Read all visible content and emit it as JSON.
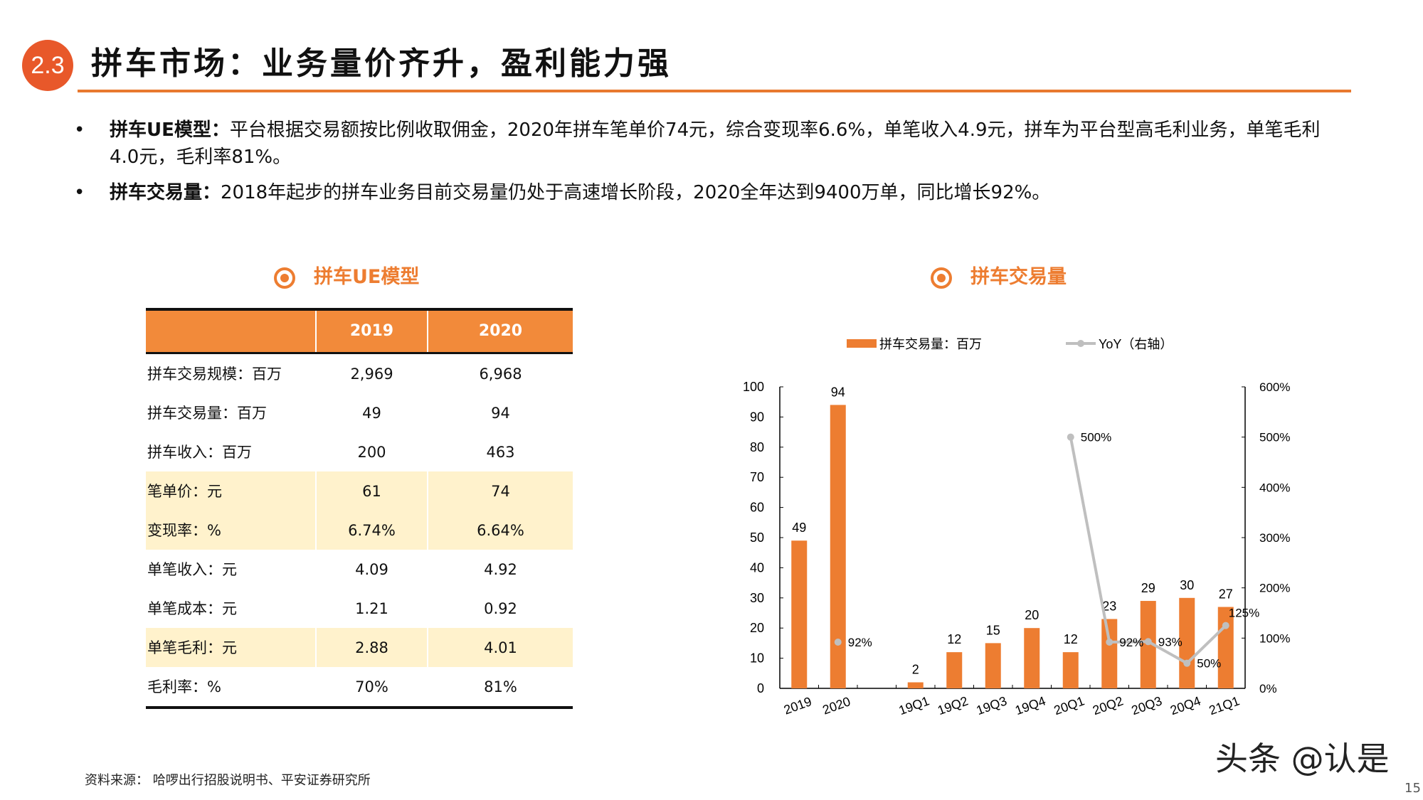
{
  "header": {
    "badge": "2.3",
    "title": "拼车市场：业务量价齐升，盈利能力强"
  },
  "bullets": [
    {
      "label": "拼车UE模型：",
      "text": "平台根据交易额按比例收取佣金，2020年拼车笔单价74元，综合变现率6.6%，单笔收入4.9元，拼车为平台型高毛利业务，单笔毛利4.0元，毛利率81%。"
    },
    {
      "label": "拼车交易量：",
      "text": "2018年起步的拼车业务目前交易量仍处于高速增长阶段，2020全年达到9400万单，同比增长92%。"
    }
  ],
  "table_section": {
    "title": "拼车UE模型",
    "columns": [
      "",
      "2019",
      "2020"
    ],
    "rows": [
      {
        "label": "拼车交易规模：百万",
        "v2019": "2,969",
        "v2020": "6,968",
        "highlight": false
      },
      {
        "label": "拼车交易量：百万",
        "v2019": "49",
        "v2020": "94",
        "highlight": false
      },
      {
        "label": "拼车收入：百万",
        "v2019": "200",
        "v2020": "463",
        "highlight": false
      },
      {
        "label": "笔单价：元",
        "v2019": "61",
        "v2020": "74",
        "highlight": true
      },
      {
        "label": "变现率：%",
        "v2019": "6.74%",
        "v2020": "6.64%",
        "highlight": true
      },
      {
        "label": "单笔收入：元",
        "v2019": "4.09",
        "v2020": "4.92",
        "highlight": false
      },
      {
        "label": "单笔成本：元",
        "v2019": "1.21",
        "v2020": "0.92",
        "highlight": false
      },
      {
        "label": "单笔毛利：元",
        "v2019": "2.88",
        "v2020": "4.01",
        "highlight": true
      },
      {
        "label": "毛利率：%",
        "v2019": "70%",
        "v2020": "81%",
        "highlight": false
      }
    ]
  },
  "chart_section": {
    "title": "拼车交易量"
  },
  "chart_data": {
    "type": "bar+line",
    "categories": [
      "2019",
      "2020",
      "",
      "19Q1",
      "19Q2",
      "19Q3",
      "19Q4",
      "20Q1",
      "20Q2",
      "20Q3",
      "20Q4",
      "21Q1"
    ],
    "series": [
      {
        "name": "拼车交易量：百万",
        "type": "bar",
        "axis": "left",
        "color": "#ED7D31",
        "values": [
          49,
          94,
          null,
          2,
          12,
          15,
          20,
          12,
          23,
          29,
          30,
          27
        ],
        "labels": [
          "49",
          "94",
          "",
          "2",
          "12",
          "15",
          "20",
          "12",
          "23",
          "29",
          "30",
          "27"
        ]
      },
      {
        "name": "YoY（右轴）",
        "type": "line",
        "axis": "right",
        "color": "#BFBFBF",
        "values": [
          null,
          92,
          null,
          null,
          null,
          null,
          null,
          500,
          92,
          93,
          50,
          125
        ],
        "labels": [
          "",
          "92%",
          "",
          "",
          "",
          "",
          "",
          "500%",
          "92%",
          "93%",
          "50%",
          "125%"
        ]
      }
    ],
    "y_left": {
      "range": [
        0,
        100
      ],
      "ticks": [
        "0",
        "10",
        "20",
        "30",
        "40",
        "50",
        "60",
        "70",
        "80",
        "90",
        "100"
      ]
    },
    "y_right": {
      "range": [
        0,
        600
      ],
      "ticks": [
        "0%",
        "100%",
        "200%",
        "300%",
        "400%",
        "500%",
        "600%"
      ]
    },
    "grid": false,
    "legend": "top"
  },
  "footer": {
    "source": "资料来源： 哈啰出行招股说明书、平安证券研究所",
    "watermark": "头条 @认是",
    "page": "15"
  }
}
